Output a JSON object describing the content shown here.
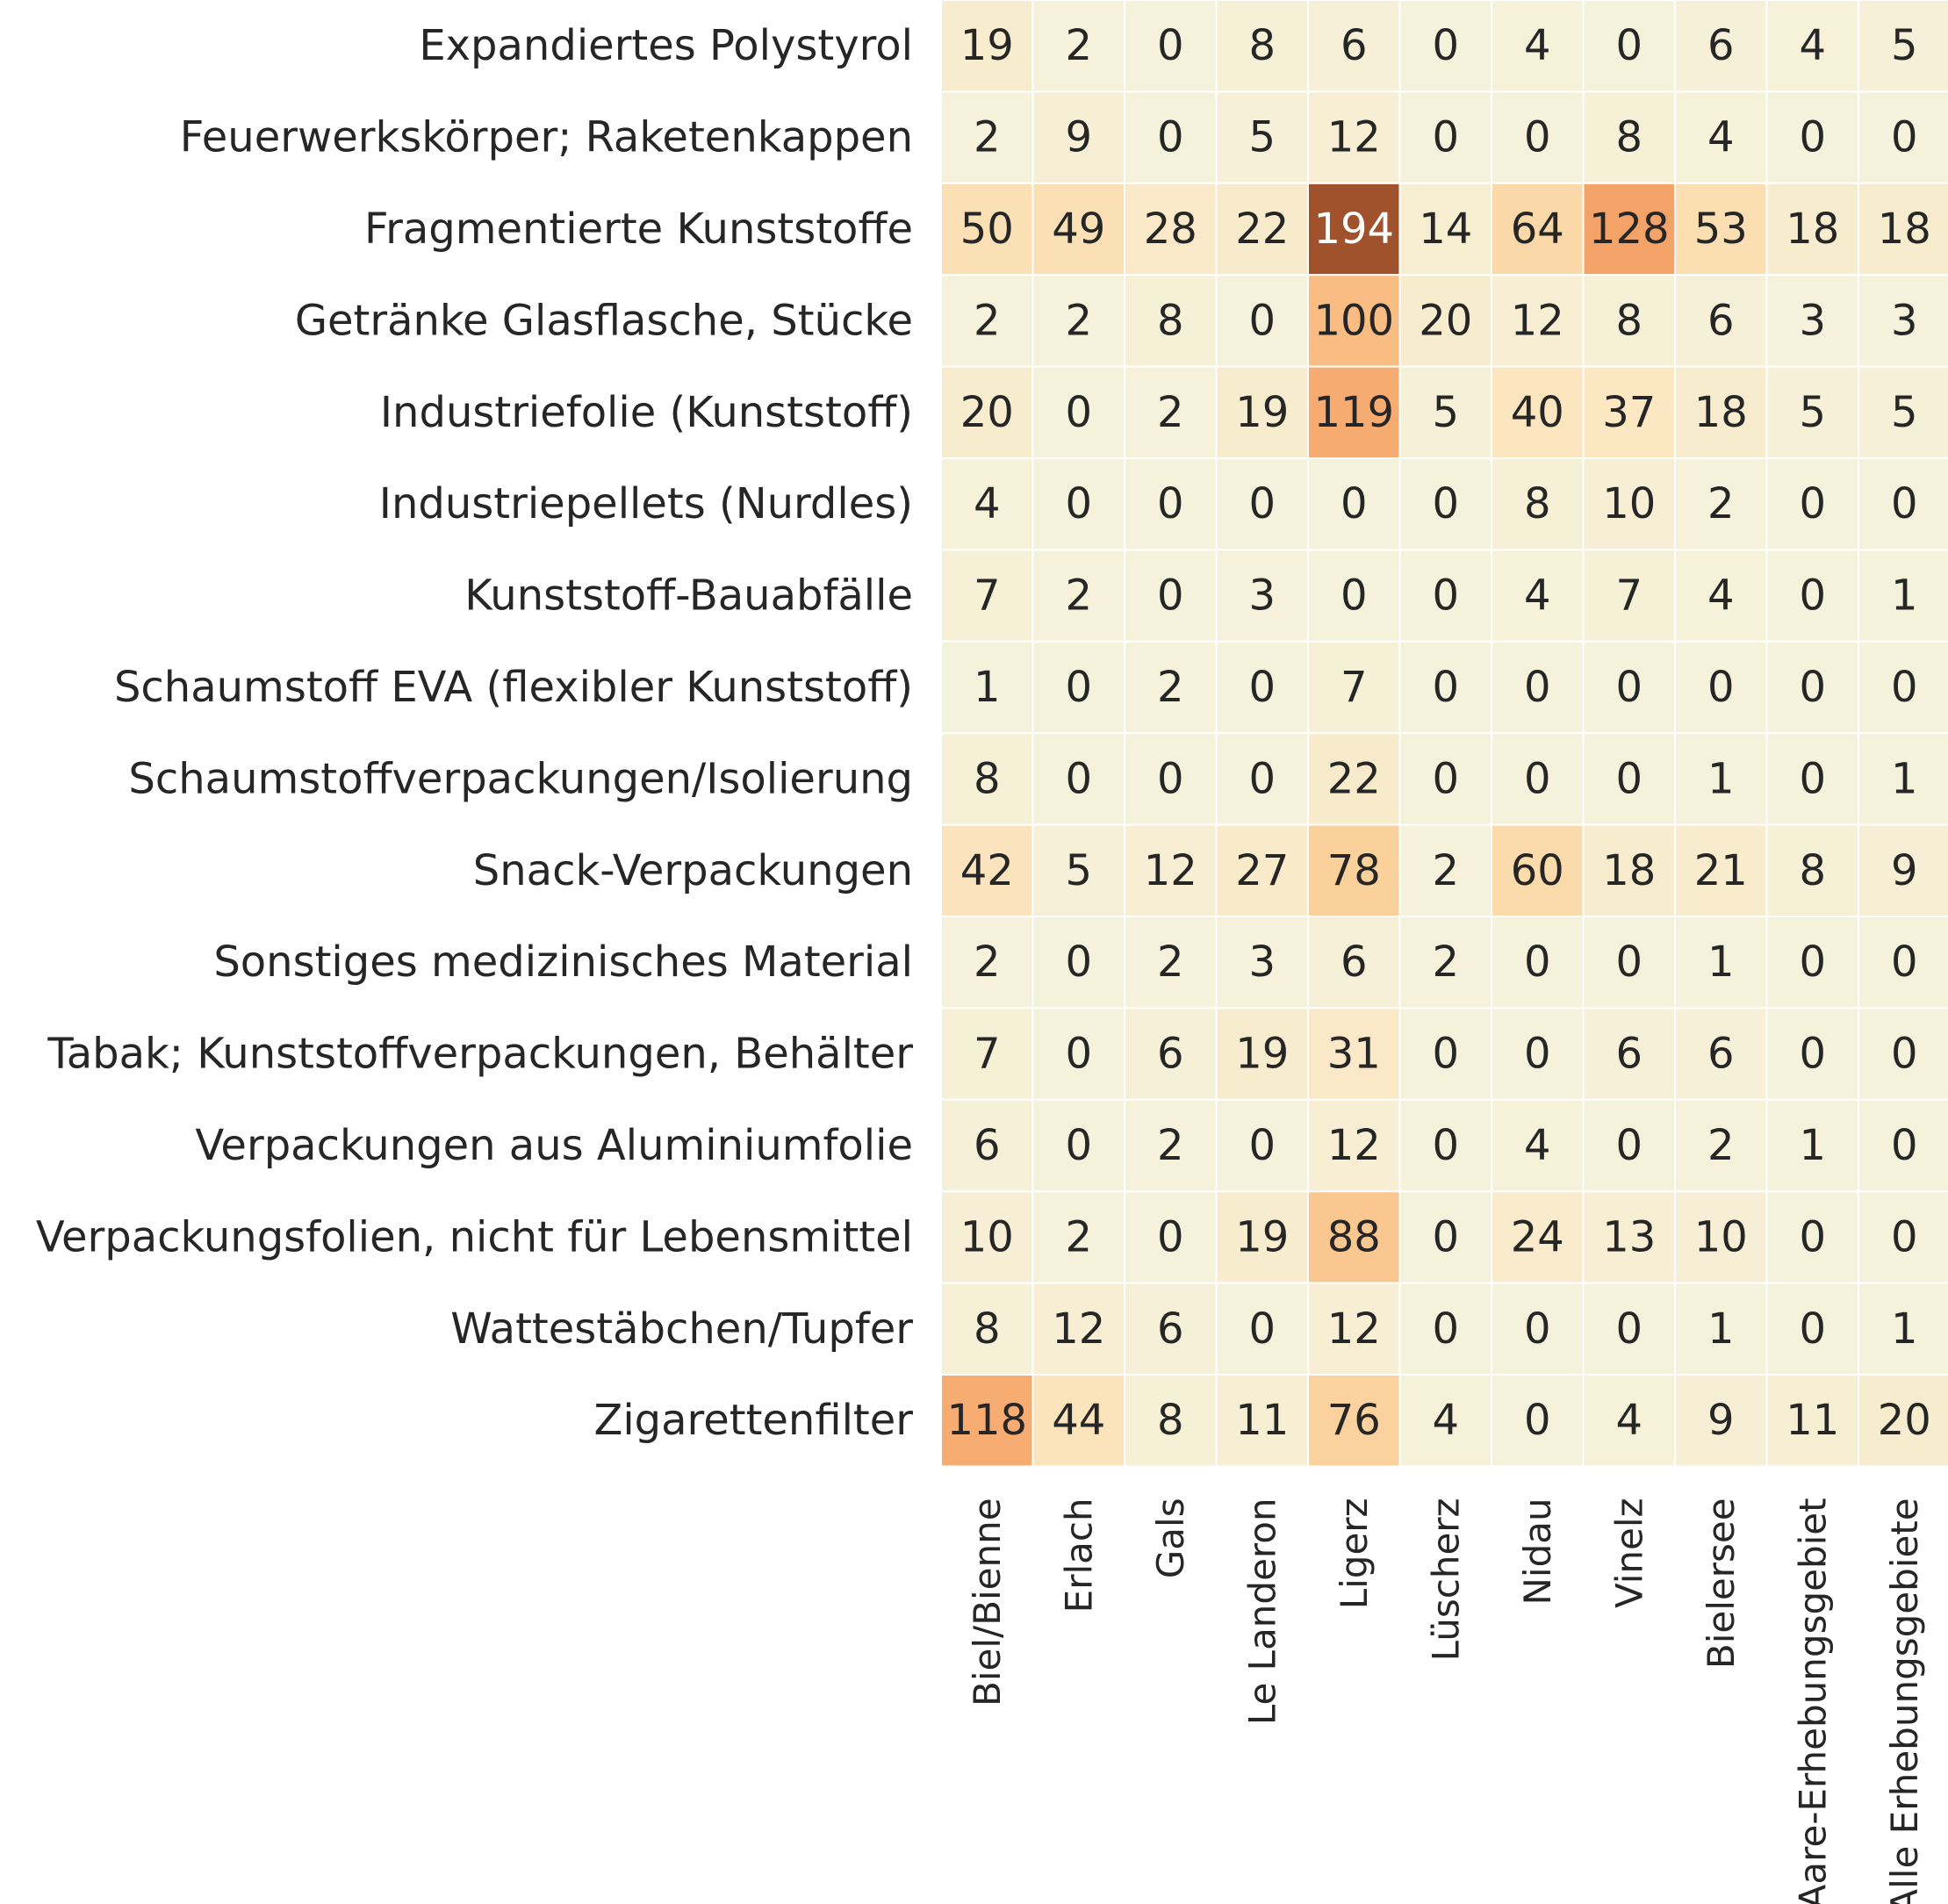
{
  "chart_data": {
    "type": "heatmap",
    "title": "",
    "xlabel": "",
    "ylabel": "",
    "rows": [
      "Expandiertes Polystyrol",
      "Feuerwerkskörper; Raketenkappen",
      "Fragmentierte Kunststoffe",
      "Getränke Glasflasche, Stücke",
      "Industriefolie (Kunststoff)",
      "Industriepellets (Nurdles)",
      "Kunststoff-Bauabfälle",
      "Schaumstoff EVA (flexibler Kunststoff)",
      "Schaumstoffverpackungen/Isolierung",
      "Snack-Verpackungen",
      "Sonstiges medizinisches Material",
      "Tabak; Kunststoffverpackungen, Behälter",
      "Verpackungen aus Aluminiumfolie",
      "Verpackungsfolien, nicht für Lebensmittel",
      "Wattestäbchen/Tupfer",
      "Zigarettenfilter"
    ],
    "columns": [
      "Biel/Bienne",
      "Erlach",
      "Gals",
      "Le Landeron",
      "Ligerz",
      "Lüscherz",
      "Nidau",
      "Vinelz",
      "Bielersee",
      "Aare-Erhebungsgebiet",
      "Alle Erhebungsgebiete"
    ],
    "values": [
      [
        19,
        2,
        0,
        8,
        6,
        0,
        4,
        0,
        6,
        4,
        5
      ],
      [
        2,
        9,
        0,
        5,
        12,
        0,
        0,
        8,
        4,
        0,
        0
      ],
      [
        50,
        49,
        28,
        22,
        194,
        14,
        64,
        128,
        53,
        18,
        18
      ],
      [
        2,
        2,
        8,
        0,
        100,
        20,
        12,
        8,
        6,
        3,
        3
      ],
      [
        20,
        0,
        2,
        19,
        119,
        5,
        40,
        37,
        18,
        5,
        5
      ],
      [
        4,
        0,
        0,
        0,
        0,
        0,
        8,
        10,
        2,
        0,
        0
      ],
      [
        7,
        2,
        0,
        3,
        0,
        0,
        4,
        7,
        4,
        0,
        1
      ],
      [
        1,
        0,
        2,
        0,
        7,
        0,
        0,
        0,
        0,
        0,
        0
      ],
      [
        8,
        0,
        0,
        0,
        22,
        0,
        0,
        0,
        1,
        0,
        1
      ],
      [
        42,
        5,
        12,
        27,
        78,
        2,
        60,
        18,
        21,
        8,
        9
      ],
      [
        2,
        0,
        2,
        3,
        6,
        2,
        0,
        0,
        1,
        0,
        0
      ],
      [
        7,
        0,
        6,
        19,
        31,
        0,
        0,
        6,
        6,
        0,
        0
      ],
      [
        6,
        0,
        2,
        0,
        12,
        0,
        4,
        0,
        2,
        1,
        0
      ],
      [
        10,
        2,
        0,
        19,
        88,
        0,
        24,
        13,
        10,
        0,
        0
      ],
      [
        8,
        12,
        6,
        0,
        12,
        0,
        0,
        0,
        1,
        0,
        1
      ],
      [
        118,
        44,
        8,
        11,
        76,
        4,
        0,
        4,
        9,
        11,
        20
      ]
    ],
    "color_scale": {
      "min": 0,
      "max": 194,
      "stops": [
        "#f5f2dc",
        "#fbe6c0",
        "#fbd19b",
        "#f7ad72",
        "#eb8c52",
        "#a0522d"
      ]
    },
    "text_color_dark": "#262626",
    "text_color_light": "#ffffff",
    "grid": true,
    "legend": "none"
  }
}
